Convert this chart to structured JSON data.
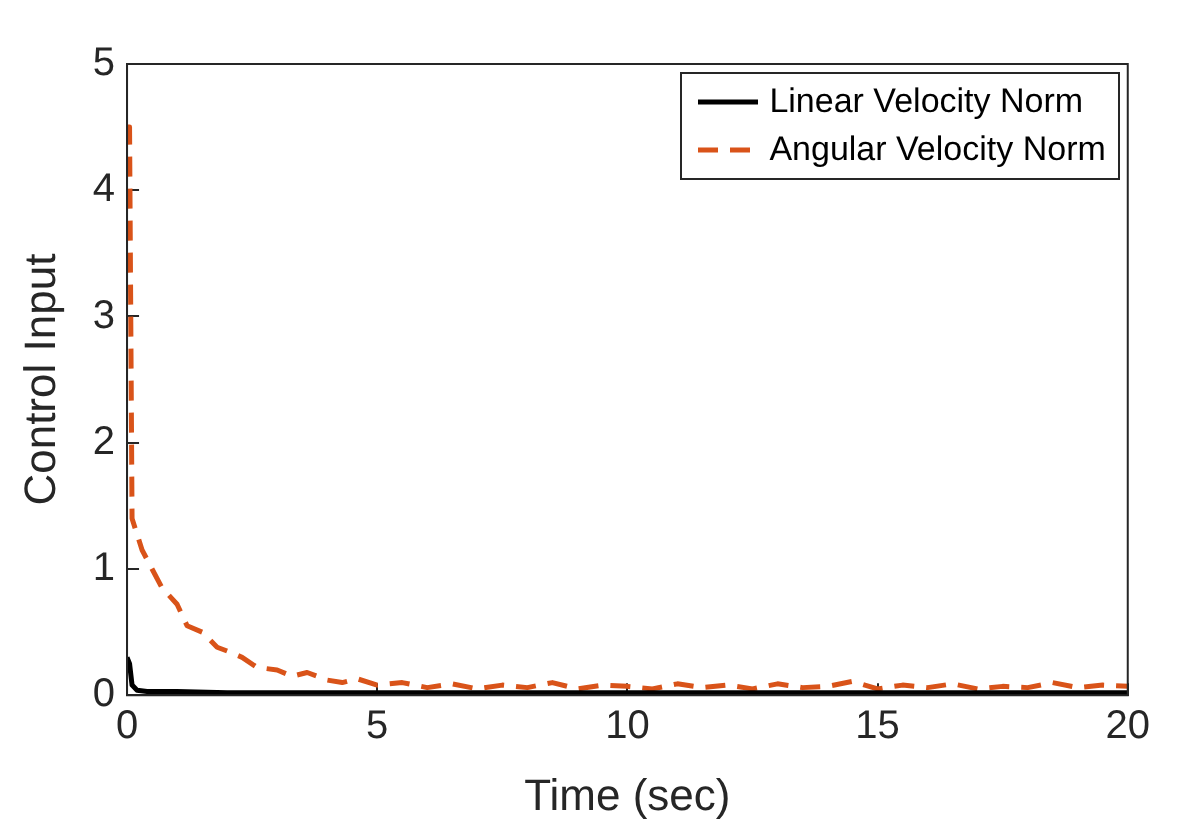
{
  "chart_data": {
    "type": "line",
    "xlabel": "Time (sec)",
    "ylabel": "Control Input",
    "xlim": [
      0,
      20
    ],
    "xticks": [
      0,
      5,
      10,
      15,
      20
    ],
    "ylim": [
      0,
      5
    ],
    "yticks": [
      0,
      1,
      2,
      3,
      4,
      5
    ],
    "grid": false,
    "legend": "top right",
    "series": [
      {
        "name": "Linear Velocity Norm",
        "color": "#000000",
        "line_style": "solid",
        "x": [
          0,
          0.05,
          0.1,
          0.2,
          0.4,
          1,
          2,
          3,
          4,
          5,
          6,
          8,
          10,
          12,
          14,
          16,
          18,
          20
        ],
        "values": [
          0.3,
          0.25,
          0.08,
          0.04,
          0.03,
          0.03,
          0.02,
          0.02,
          0.02,
          0.02,
          0.02,
          0.02,
          0.02,
          0.02,
          0.02,
          0.02,
          0.02,
          0.02
        ]
      },
      {
        "name": "Angular Velocity Norm",
        "color": "#d95319",
        "line_style": "dashed",
        "x": [
          0,
          0.05,
          0.1,
          0.3,
          0.5,
          0.7,
          1,
          1.2,
          1.5,
          1.8,
          2,
          2.3,
          2.6,
          3,
          3.3,
          3.6,
          4,
          4.3,
          4.6,
          5,
          5.5,
          6,
          6.5,
          7,
          7.5,
          8,
          8.5,
          9,
          9.5,
          10,
          10.5,
          11,
          11.5,
          12,
          12.5,
          13,
          13.5,
          14,
          14.5,
          15,
          15.5,
          16,
          16.5,
          17,
          17.5,
          18,
          18.5,
          19,
          19.5,
          20
        ],
        "values": [
          4.5,
          4.5,
          1.4,
          1.15,
          1.0,
          0.85,
          0.72,
          0.55,
          0.5,
          0.38,
          0.35,
          0.3,
          0.22,
          0.2,
          0.15,
          0.18,
          0.12,
          0.1,
          0.13,
          0.08,
          0.1,
          0.06,
          0.09,
          0.05,
          0.08,
          0.06,
          0.1,
          0.05,
          0.08,
          0.07,
          0.05,
          0.09,
          0.06,
          0.08,
          0.05,
          0.09,
          0.06,
          0.07,
          0.11,
          0.05,
          0.08,
          0.06,
          0.09,
          0.05,
          0.07,
          0.06,
          0.1,
          0.06,
          0.08,
          0.07
        ]
      }
    ]
  }
}
